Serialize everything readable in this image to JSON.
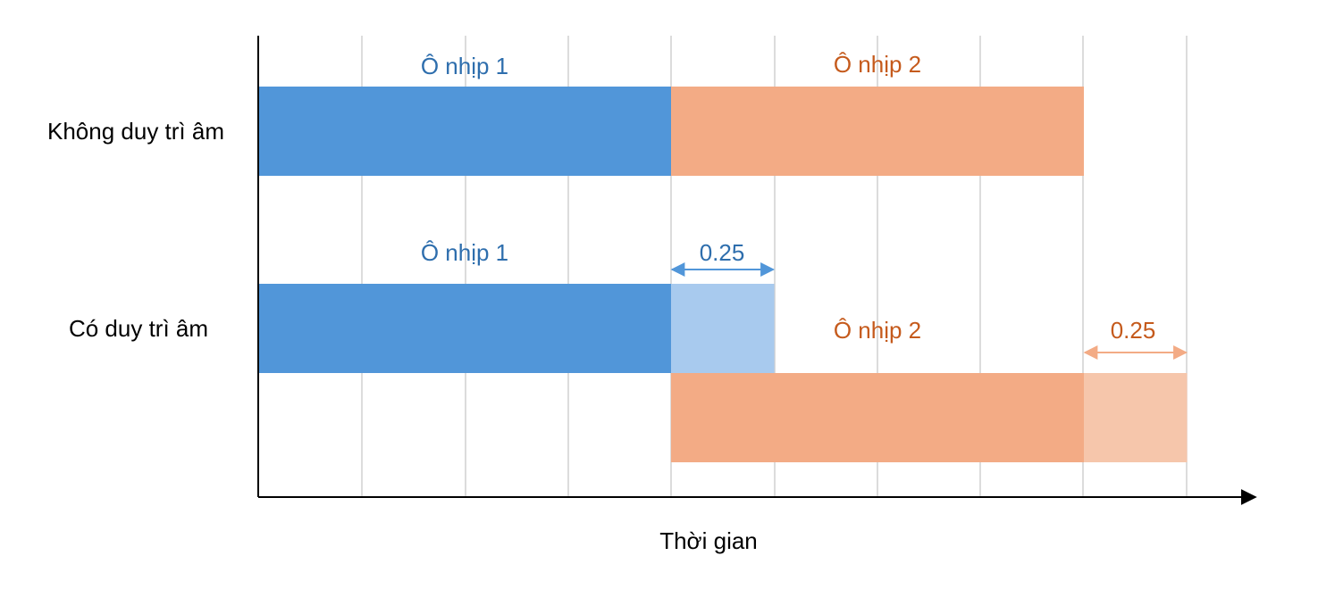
{
  "axis": {
    "xlabel": "Thời gian"
  },
  "rows": [
    {
      "label": "Không duy trì âm"
    },
    {
      "label": "Có duy trì âm"
    }
  ],
  "blocks": {
    "row1_block1": {
      "label": "Ô nhịp 1",
      "start": 0,
      "duration": 1,
      "color": "#5196d9"
    },
    "row1_block2": {
      "label": "Ô nhịp 2",
      "start": 1,
      "duration": 1,
      "color": "#f3ab85"
    },
    "row2_block1": {
      "label": "Ô nhịp 1",
      "start": 0,
      "duration": 1,
      "color": "#5196d9"
    },
    "row2_sustain1": {
      "label": "0.25",
      "start": 1,
      "duration": 0.25,
      "color": "#a8caee"
    },
    "row2_block2": {
      "label": "Ô nhịp 2",
      "start": 1,
      "duration": 1,
      "color": "#f3ab85"
    },
    "row2_sustain2": {
      "label": "0.25",
      "start": 2,
      "duration": 0.25,
      "color": "#f6c6ab"
    }
  },
  "colors": {
    "measure1_text": "#2e6ead",
    "measure2_text": "#c55a1c",
    "sustain1_arrow": "#5196d9",
    "sustain2_arrow": "#f3ab85",
    "grid": "#d0d0d0",
    "axis": "#000000"
  }
}
